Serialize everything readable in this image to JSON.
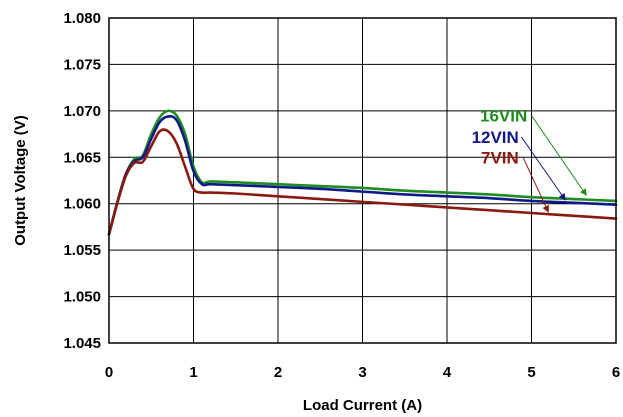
{
  "chart_data": {
    "type": "line",
    "xlabel": "Load Current (A)",
    "ylabel": "Output Voltage (V)",
    "xlim": [
      0,
      6
    ],
    "ylim": [
      1.045,
      1.08
    ],
    "x_ticks": [
      "0",
      "1",
      "2",
      "3",
      "4",
      "5",
      "6"
    ],
    "y_ticks": [
      "1.045",
      "1.050",
      "1.055",
      "1.060",
      "1.065",
      "1.070",
      "1.075",
      "1.080"
    ],
    "grid": true,
    "series": [
      {
        "name": "16VIN",
        "color": "#1e8c1e",
        "points": [
          [
            0,
            1.0567
          ],
          [
            0.1,
            1.0602
          ],
          [
            0.2,
            1.0632
          ],
          [
            0.3,
            1.0648
          ],
          [
            0.4,
            1.0652
          ],
          [
            0.5,
            1.0675
          ],
          [
            0.6,
            1.0693
          ],
          [
            0.7,
            1.07
          ],
          [
            0.8,
            1.0695
          ],
          [
            0.9,
            1.0675
          ],
          [
            1.0,
            1.064
          ],
          [
            1.1,
            1.0623
          ],
          [
            1.2,
            1.0624
          ],
          [
            1.5,
            1.0623
          ],
          [
            2,
            1.0621
          ],
          [
            2.5,
            1.0619
          ],
          [
            3,
            1.0617
          ],
          [
            3.5,
            1.0614
          ],
          [
            4,
            1.0612
          ],
          [
            4.5,
            1.061
          ],
          [
            5,
            1.0607
          ],
          [
            5.5,
            1.0605
          ],
          [
            6,
            1.0603
          ]
        ]
      },
      {
        "name": "12VIN",
        "color": "#10188a",
        "points": [
          [
            0,
            1.0567
          ],
          [
            0.1,
            1.0602
          ],
          [
            0.2,
            1.0632
          ],
          [
            0.3,
            1.0646
          ],
          [
            0.4,
            1.065
          ],
          [
            0.5,
            1.067
          ],
          [
            0.6,
            1.0688
          ],
          [
            0.7,
            1.0694
          ],
          [
            0.8,
            1.069
          ],
          [
            0.9,
            1.0668
          ],
          [
            1.0,
            1.0635
          ],
          [
            1.1,
            1.0621
          ],
          [
            1.2,
            1.0621
          ],
          [
            1.5,
            1.062
          ],
          [
            2,
            1.0618
          ],
          [
            2.5,
            1.0616
          ],
          [
            3,
            1.0613
          ],
          [
            3.5,
            1.061
          ],
          [
            4,
            1.0608
          ],
          [
            4.5,
            1.0606
          ],
          [
            5,
            1.0603
          ],
          [
            5.5,
            1.0601
          ],
          [
            6,
            1.0599
          ]
        ]
      },
      {
        "name": "7VIN",
        "color": "#8a1a10",
        "points": [
          [
            0,
            1.0567
          ],
          [
            0.1,
            1.0601
          ],
          [
            0.2,
            1.063
          ],
          [
            0.3,
            1.0644
          ],
          [
            0.4,
            1.0645
          ],
          [
            0.5,
            1.0662
          ],
          [
            0.6,
            1.0678
          ],
          [
            0.7,
            1.0678
          ],
          [
            0.8,
            1.0665
          ],
          [
            0.9,
            1.064
          ],
          [
            1.0,
            1.0616
          ],
          [
            1.1,
            1.0612
          ],
          [
            1.2,
            1.0612
          ],
          [
            1.5,
            1.0611
          ],
          [
            2,
            1.0608
          ],
          [
            2.5,
            1.0605
          ],
          [
            3,
            1.0602
          ],
          [
            3.5,
            1.0599
          ],
          [
            4,
            1.0596
          ],
          [
            4.5,
            1.0593
          ],
          [
            5,
            1.059
          ],
          [
            5.5,
            1.0587
          ],
          [
            6,
            1.0584
          ]
        ]
      }
    ],
    "annotations": [
      {
        "text": "16VIN",
        "color": "#1e8c1e",
        "label_x": 4.95,
        "label_y": 1.0695,
        "arrow_from": [
          5.0,
          1.0695
        ],
        "arrow_to": [
          5.65,
          1.0609
        ]
      },
      {
        "text": "12VIN",
        "color": "#10188a",
        "label_x": 4.85,
        "label_y": 1.0672,
        "arrow_from": [
          4.88,
          1.0672
        ],
        "arrow_to": [
          5.4,
          1.0604
        ]
      },
      {
        "text": "7VIN",
        "color": "#8a1a10",
        "label_x": 4.85,
        "label_y": 1.065,
        "arrow_from": [
          4.9,
          1.065
        ],
        "arrow_to": [
          5.2,
          1.0591
        ]
      }
    ]
  }
}
